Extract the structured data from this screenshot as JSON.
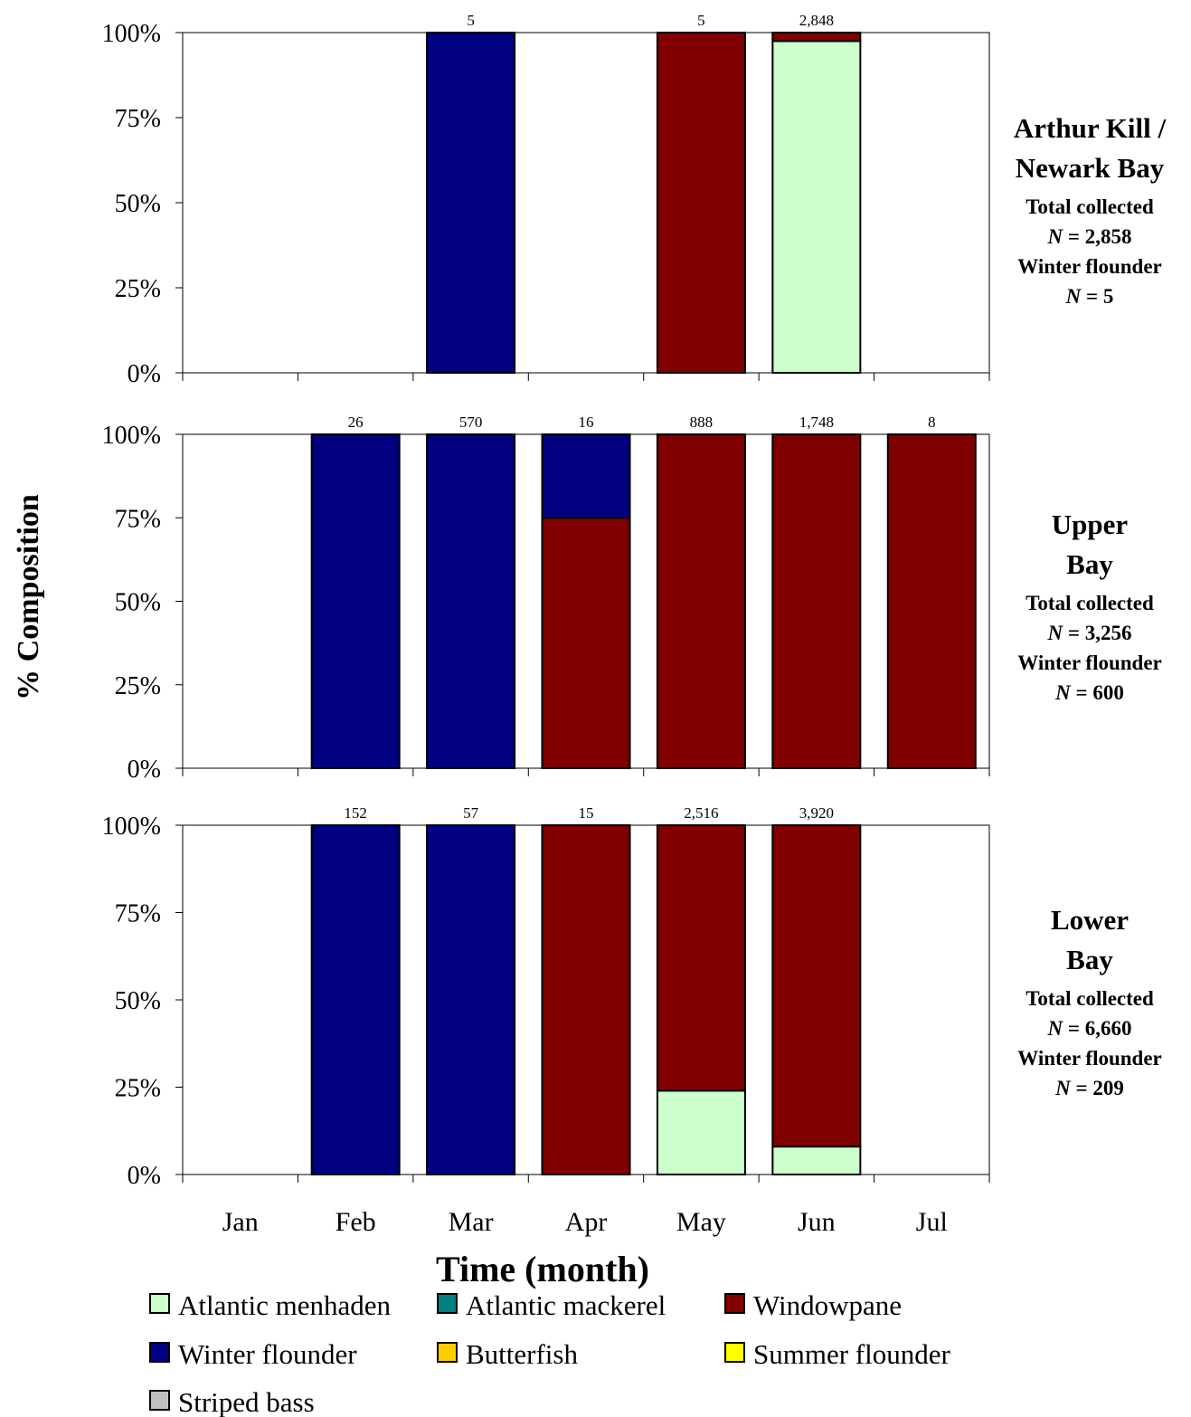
{
  "chart_data": {
    "type": "bar",
    "stacked": true,
    "normalized": true,
    "xlabel": "Time (month)",
    "ylabel": "% Composition",
    "categories": [
      "Jan",
      "Feb",
      "Mar",
      "Apr",
      "May",
      "Jun",
      "Jul"
    ],
    "ylim": [
      0,
      100
    ],
    "yticks": [
      "0%",
      "25%",
      "50%",
      "75%",
      "100%"
    ],
    "grid": false,
    "legend_position": "bottom",
    "legend": [
      {
        "name": "Atlantic menhaden",
        "color": "#ccffcc"
      },
      {
        "name": "Atlantic mackerel",
        "color": "#008080"
      },
      {
        "name": "Windowpane",
        "color": "#800000"
      },
      {
        "name": "Winter flounder",
        "color": "#000080"
      },
      {
        "name": "Butterfish",
        "color": "#ffcc00"
      },
      {
        "name": "Summer flounder",
        "color": "#ffff00"
      },
      {
        "name": "Striped bass",
        "color": "#c0c0c0"
      }
    ],
    "panels": [
      {
        "region_lines": [
          "Arthur Kill /",
          "Newark Bay"
        ],
        "total_label": "Total collected",
        "total_n": "= 2,858",
        "wf_label": "Winter flounder",
        "wf_n": "= 5",
        "counts": [
          "",
          "",
          "5",
          "",
          "5",
          "2,848",
          ""
        ],
        "series": [
          {
            "name": "Atlantic menhaden",
            "values": [
              0,
              0,
              0,
              0,
              0,
              97.5,
              0
            ]
          },
          {
            "name": "Windowpane",
            "values": [
              0,
              0,
              0,
              0,
              100,
              2.5,
              0
            ]
          },
          {
            "name": "Winter flounder",
            "values": [
              0,
              0,
              100,
              0,
              0,
              0,
              0
            ]
          }
        ]
      },
      {
        "region_lines": [
          "Upper",
          "Bay"
        ],
        "total_label": "Total collected",
        "total_n": "= 3,256",
        "wf_label": "Winter flounder",
        "wf_n": "= 600",
        "counts": [
          "",
          "26",
          "570",
          "16",
          "888",
          "1,748",
          "8"
        ],
        "series": [
          {
            "name": "Atlantic menhaden",
            "values": [
              0,
              0,
              0,
              0,
              0,
              0,
              0
            ]
          },
          {
            "name": "Windowpane",
            "values": [
              0,
              0,
              0,
              75,
              100,
              100,
              100
            ]
          },
          {
            "name": "Winter flounder",
            "values": [
              0,
              100,
              100,
              25,
              0,
              0,
              0
            ]
          }
        ]
      },
      {
        "region_lines": [
          "Lower",
          "Bay"
        ],
        "total_label": "Total collected",
        "total_n": "= 6,660",
        "wf_label": "Winter flounder",
        "wf_n": "= 209",
        "counts": [
          "",
          "152",
          "57",
          "15",
          "2,516",
          "3,920",
          ""
        ],
        "series": [
          {
            "name": "Atlantic menhaden",
            "values": [
              0,
              0,
              0,
              0,
              24,
              8,
              0
            ]
          },
          {
            "name": "Windowpane",
            "values": [
              0,
              0,
              0,
              100,
              76,
              92,
              0
            ]
          },
          {
            "name": "Winter flounder",
            "values": [
              0,
              100,
              100,
              0,
              0,
              0,
              0
            ]
          }
        ]
      }
    ]
  }
}
